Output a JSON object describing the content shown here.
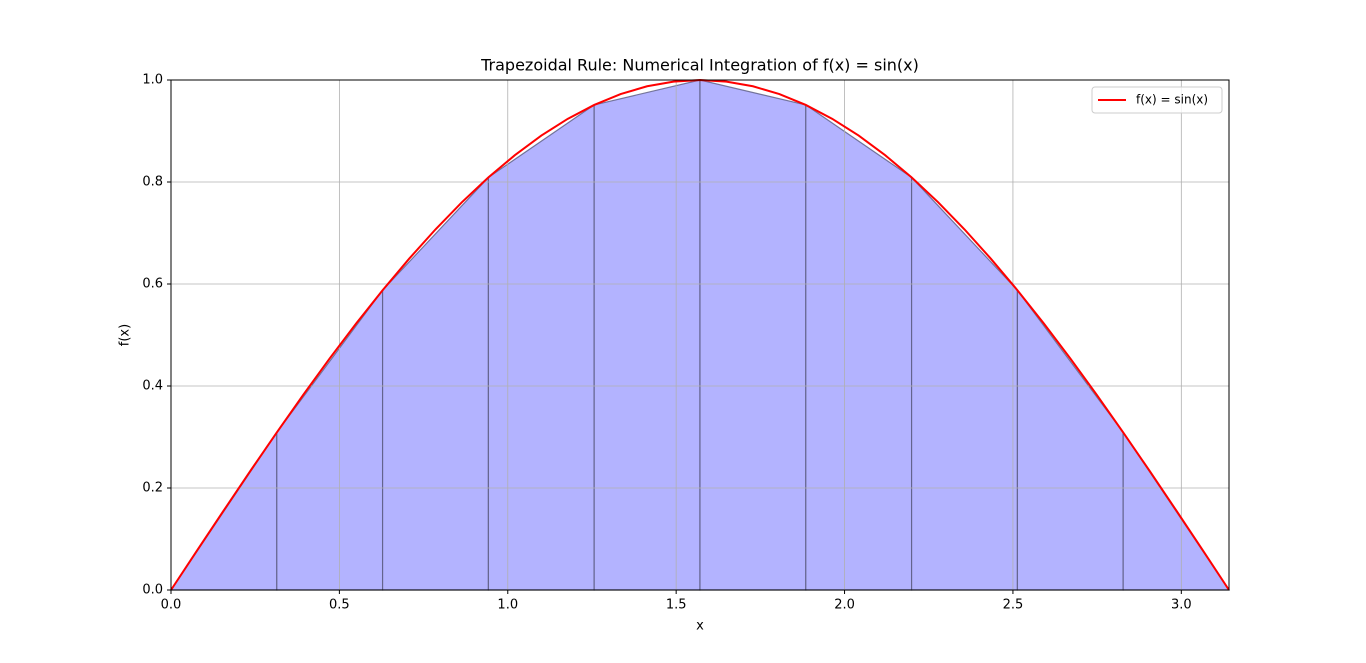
{
  "chart_data": {
    "type": "line",
    "title": "Trapezoidal Rule: Numerical Integration of f(x) = sin(x)",
    "xlabel": "x",
    "ylabel": "f(x)",
    "x": [
      0,
      0.0785,
      0.1571,
      0.2356,
      0.3142,
      0.3927,
      0.4712,
      0.5498,
      0.6283,
      0.7069,
      0.7854,
      0.8639,
      0.9425,
      1.021,
      1.0996,
      1.1781,
      1.2566,
      1.3352,
      1.4137,
      1.4923,
      1.5708,
      1.6493,
      1.7279,
      1.8064,
      1.885,
      1.9635,
      2.042,
      2.1206,
      2.1991,
      2.2777,
      2.3562,
      2.4347,
      2.5133,
      2.5918,
      2.6704,
      2.7489,
      2.8274,
      2.906,
      2.9845,
      3.0631,
      3.1416
    ],
    "series": [
      {
        "name": "f(x) = sin(x)",
        "color": "#ff0000",
        "values": [
          0,
          0.0785,
          0.1564,
          0.2334,
          0.309,
          0.3827,
          0.454,
          0.5225,
          0.5878,
          0.6494,
          0.7071,
          0.7604,
          0.809,
          0.8526,
          0.891,
          0.9239,
          0.9511,
          0.9724,
          0.9877,
          0.9969,
          1.0,
          0.9969,
          0.9877,
          0.9724,
          0.9511,
          0.9239,
          0.891,
          0.8526,
          0.809,
          0.7604,
          0.7071,
          0.6494,
          0.5878,
          0.5225,
          0.454,
          0.3827,
          0.309,
          0.2334,
          0.1564,
          0.0785,
          0
        ]
      }
    ],
    "trapezoids": {
      "fill": "#b3b3ff",
      "edge": "#5a5a80",
      "x": [
        0,
        0.3142,
        0.6283,
        0.9425,
        1.2566,
        1.5708,
        1.885,
        2.1991,
        2.5133,
        2.8274,
        3.1416
      ],
      "values": [
        0,
        0.309,
        0.5878,
        0.809,
        0.9511,
        1.0,
        0.9511,
        0.809,
        0.5878,
        0.309,
        0
      ]
    },
    "xlim": [
      0,
      3.1416
    ],
    "ylim": [
      0,
      1
    ],
    "xticks": [
      {
        "value": 0,
        "label": "0.0"
      },
      0.5,
      {
        "value": 1,
        "label": "1.0"
      },
      1.5,
      {
        "value": 2,
        "label": "2.0"
      },
      2.5,
      {
        "value": 3,
        "label": "3.0"
      }
    ],
    "yticks": [
      {
        "value": 0,
        "label": "0.0"
      },
      0.2,
      0.4,
      0.6,
      0.8,
      {
        "value": 1,
        "label": "1.0"
      }
    ],
    "grid": true,
    "legend": "upper right"
  }
}
